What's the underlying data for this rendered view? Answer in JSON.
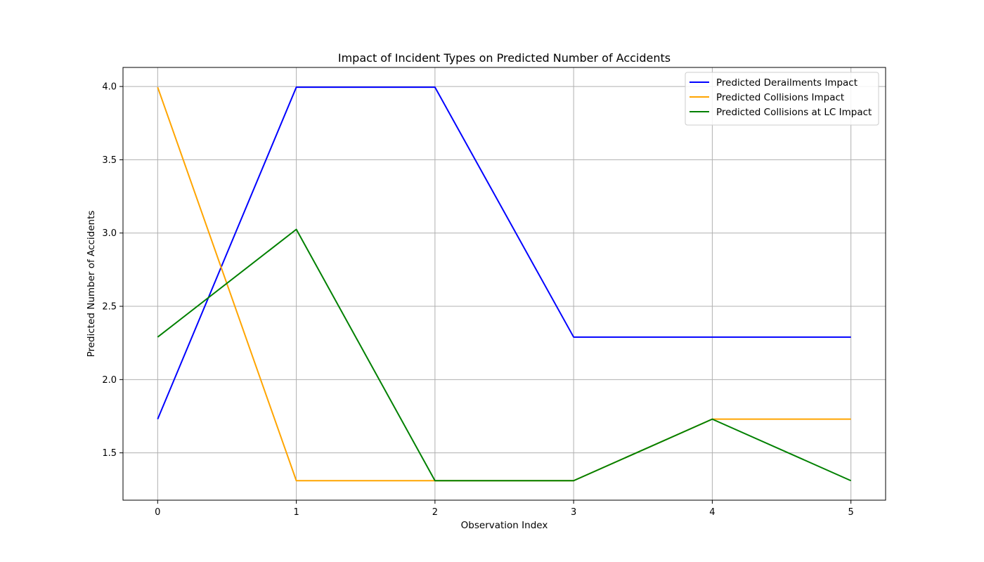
{
  "chart_data": {
    "type": "line",
    "title": "Impact of Incident Types on Predicted Number of Accidents",
    "xlabel": "Observation Index",
    "ylabel": "Predicted Number of Accidents",
    "x": [
      0,
      1,
      2,
      3,
      4,
      5
    ],
    "xticks": [
      "0",
      "1",
      "2",
      "3",
      "4",
      "5"
    ],
    "yticks": [
      "1.5",
      "2.0",
      "2.5",
      "3.0",
      "3.5",
      "4.0"
    ],
    "ytick_values": [
      1.5,
      2.0,
      2.5,
      3.0,
      3.5,
      4.0
    ],
    "xlim": [
      -0.25,
      5.25
    ],
    "ylim": [
      1.177,
      4.13
    ],
    "grid": true,
    "legend_position": "top-right",
    "series": [
      {
        "name": "Predicted Derailments Impact",
        "color": "#0000ff",
        "values": [
          1.73,
          3.995,
          3.995,
          2.29,
          2.29,
          2.29
        ]
      },
      {
        "name": "Predicted Collisions Impact",
        "color": "#ffa500",
        "values": [
          3.995,
          1.31,
          1.31,
          1.31,
          1.73,
          1.73
        ]
      },
      {
        "name": "Predicted Collisions at LC Impact",
        "color": "#008000",
        "values": [
          2.29,
          3.025,
          1.31,
          1.31,
          1.73,
          1.31
        ]
      }
    ]
  }
}
